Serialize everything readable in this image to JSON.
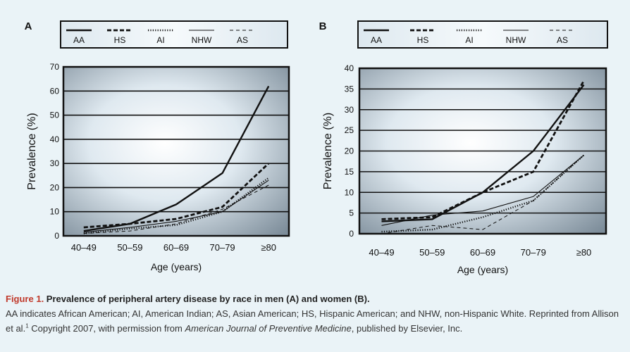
{
  "chart_data": [
    {
      "type": "line",
      "panel_label": "A",
      "title": "",
      "xlabel": "Age (years)",
      "ylabel": "Prevalence (%)",
      "categories": [
        "40–49",
        "50–59",
        "60–69",
        "70–79",
        "≥80"
      ],
      "ylim": [
        0,
        70
      ],
      "yticks": [
        0,
        10,
        20,
        30,
        40,
        50,
        60,
        70
      ],
      "grid": true,
      "legend_position": "top",
      "series": [
        {
          "name": "AA",
          "style": "solid-thick",
          "values": [
            2,
            5,
            13,
            26,
            62
          ]
        },
        {
          "name": "HS",
          "style": "dashed-thick",
          "values": [
            3.5,
            5,
            7,
            12,
            30
          ]
        },
        {
          "name": "AI",
          "style": "dotted",
          "values": [
            1,
            3,
            4.5,
            10,
            24
          ]
        },
        {
          "name": "NHW",
          "style": "solid-thin",
          "values": [
            1.5,
            3.5,
            6,
            10,
            23
          ]
        },
        {
          "name": "AS",
          "style": "dashed-thin",
          "values": [
            1,
            2,
            5,
            11,
            21
          ]
        }
      ]
    },
    {
      "type": "line",
      "panel_label": "B",
      "title": "",
      "xlabel": "Age (years)",
      "ylabel": "Prevalence (%)",
      "categories": [
        "40–49",
        "50–59",
        "60–69",
        "70–79",
        "≥80"
      ],
      "ylim": [
        0,
        40
      ],
      "yticks": [
        0,
        5,
        10,
        15,
        20,
        25,
        30,
        35,
        40
      ],
      "grid": true,
      "legend_position": "top",
      "series": [
        {
          "name": "AA",
          "style": "solid-thick",
          "values": [
            3,
            3.5,
            10,
            20,
            36
          ]
        },
        {
          "name": "HS",
          "style": "dashed-thick",
          "values": [
            3.5,
            4,
            10,
            15,
            37
          ]
        },
        {
          "name": "AI",
          "style": "dotted",
          "values": [
            0.5,
            1,
            4,
            8,
            19
          ]
        },
        {
          "name": "NHW",
          "style": "solid-thin",
          "values": [
            2,
            4.5,
            5.5,
            9,
            19
          ]
        },
        {
          "name": "AS",
          "style": "dashed-thin",
          "values": [
            0,
            2,
            1,
            8,
            19
          ]
        }
      ]
    }
  ],
  "caption": {
    "figure_label": "Figure 1.",
    "title": " Prevalence of peripheral artery disease by race in men (A) and women (B).",
    "text_1": "AA indicates African American; AI, American Indian; AS, Asian American; HS, Hispanic American; and NHW, non-Hispanic White. Reprinted from Allison et al.",
    "superscript": "1",
    "text_2": " Copyright 2007, with permission from ",
    "journal": "American Journal of Preventive Medicine",
    "text_3": ", published by Elsevier, Inc."
  },
  "colors": {
    "line": "#111111",
    "grid": "#111111",
    "page_bg": "#eaf3f7",
    "caption_title": "#c0392b"
  }
}
